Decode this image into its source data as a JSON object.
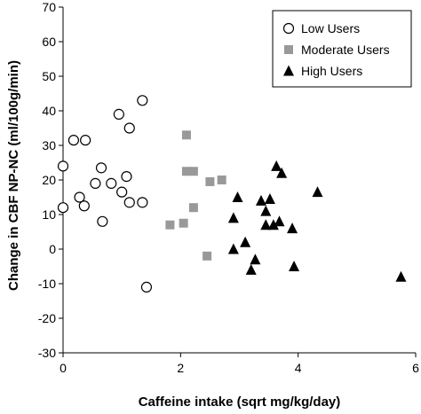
{
  "chart_data": {
    "type": "scatter",
    "xlabel": "Caffeine intake (sqrt mg/kg/day)",
    "ylabel": "Change in CBF NP-NC (ml/100g/min)",
    "xlim": [
      0,
      6
    ],
    "ylim": [
      -30,
      70
    ],
    "xticks": [
      "0",
      "2",
      "4",
      "6"
    ],
    "yticks": [
      "-30",
      "-20",
      "-10",
      "0",
      "10",
      "20",
      "30",
      "40",
      "50",
      "60",
      "70"
    ],
    "grid": false,
    "legend_position": "top-right",
    "series": [
      {
        "name": "Low Users",
        "marker": "circle-open",
        "color": "#000000",
        "points": [
          [
            0.0,
            24
          ],
          [
            0.0,
            12
          ],
          [
            0.18,
            31.5
          ],
          [
            0.38,
            31.5
          ],
          [
            0.28,
            15
          ],
          [
            0.36,
            12.5
          ],
          [
            0.55,
            19
          ],
          [
            0.65,
            23.5
          ],
          [
            0.67,
            8
          ],
          [
            0.82,
            19
          ],
          [
            0.95,
            39
          ],
          [
            1.0,
            16.5
          ],
          [
            1.08,
            21
          ],
          [
            1.13,
            35
          ],
          [
            1.13,
            13.5
          ],
          [
            1.35,
            43
          ],
          [
            1.35,
            13.5
          ],
          [
            1.42,
            -11
          ]
        ]
      },
      {
        "name": "Moderate Users",
        "marker": "square",
        "color": "#999999",
        "points": [
          [
            1.82,
            7
          ],
          [
            2.05,
            7.5
          ],
          [
            2.1,
            33
          ],
          [
            2.1,
            22.5
          ],
          [
            2.22,
            22.5
          ],
          [
            2.22,
            12
          ],
          [
            2.45,
            -2
          ],
          [
            2.5,
            19.5
          ],
          [
            2.7,
            20
          ]
        ]
      },
      {
        "name": "High Users",
        "marker": "triangle",
        "color": "#000000",
        "points": [
          [
            2.9,
            9
          ],
          [
            2.9,
            0
          ],
          [
            2.97,
            15
          ],
          [
            3.1,
            2
          ],
          [
            3.2,
            -6
          ],
          [
            3.27,
            -3
          ],
          [
            3.37,
            14
          ],
          [
            3.45,
            11
          ],
          [
            3.45,
            7
          ],
          [
            3.52,
            14.5
          ],
          [
            3.58,
            7
          ],
          [
            3.63,
            24
          ],
          [
            3.68,
            8
          ],
          [
            3.72,
            22
          ],
          [
            3.9,
            6
          ],
          [
            3.93,
            -5
          ],
          [
            4.33,
            16.5
          ],
          [
            5.75,
            -8
          ]
        ]
      }
    ]
  }
}
